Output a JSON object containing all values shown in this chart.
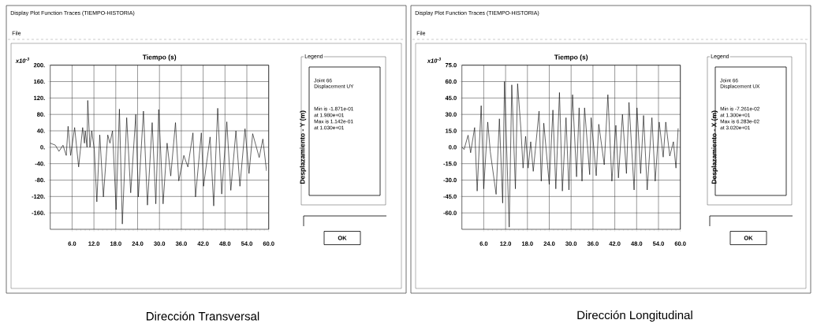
{
  "chart_data": [
    {
      "type": "line",
      "title": "Display Plot Function Traces  (TIEMPO-HISTORIA)",
      "xlabel": "Tiempo (s)",
      "ylabel": "Desplazamiento - Y (m)",
      "color": "#000000",
      "grid": true,
      "xlim": [
        0,
        60
      ],
      "ylim": [
        -200,
        200
      ],
      "xticks": [
        {
          "value": 6,
          "label": "6.0"
        },
        {
          "value": 12,
          "label": "12.0"
        },
        {
          "value": 18,
          "label": "18.0"
        },
        {
          "value": 24,
          "label": "24.0"
        },
        {
          "value": 30,
          "label": "30.0"
        },
        {
          "value": 36,
          "label": "36.0"
        },
        {
          "value": 42,
          "label": "42.0"
        },
        {
          "value": 48,
          "label": "48.0"
        },
        {
          "value": 54,
          "label": "54.0"
        },
        {
          "value": 60,
          "label": "60.0"
        }
      ],
      "yticks": [
        {
          "value": 200,
          "label": "200."
        },
        {
          "value": 160,
          "label": "160."
        },
        {
          "value": 120,
          "label": "120."
        },
        {
          "value": 80,
          "label": "80."
        },
        {
          "value": 40,
          "label": "40."
        },
        {
          "value": 0,
          "label": "0."
        },
        {
          "value": -40,
          "label": "-40."
        },
        {
          "value": -80,
          "label": "-80."
        },
        {
          "value": -120,
          "label": "-120."
        },
        {
          "value": -160,
          "label": "-160."
        }
      ],
      "x": [
        0,
        1.4,
        2.4,
        3.5,
        4.4,
        4.9,
        5.6,
        6.7,
        7.8,
        8.9,
        9.4,
        9.6,
        10.1,
        10.3,
        10.9,
        11.4,
        12.1,
        12.8,
        13.6,
        14.6,
        15.8,
        16.4,
        17.1,
        18.1,
        19.0,
        19.8,
        21.0,
        22.1,
        23.5,
        24.2,
        25.6,
        26.7,
        28.0,
        29.0,
        29.8,
        31.0,
        32.1,
        33.1,
        34.4,
        35.3,
        36.7,
        37.8,
        39.2,
        39.9,
        41.5,
        42.1,
        43.9,
        44.9,
        46.0,
        47.1,
        48.5,
        49.6,
        51.0,
        52.1,
        53.5,
        54.6,
        55.6,
        57.4,
        58.4,
        59.4
      ],
      "values": [
        10,
        5,
        -10,
        5,
        -20,
        51,
        -20,
        48,
        -48,
        48,
        10,
        40,
        0,
        114,
        0,
        40,
        -5,
        -133,
        30,
        -121,
        30,
        10,
        40,
        -152,
        93,
        -187,
        72,
        -111,
        80,
        -121,
        88,
        -141,
        60,
        -138,
        92,
        -138,
        10,
        -70,
        60,
        -82,
        -20,
        -48,
        35,
        -121,
        35,
        -95,
        25,
        -143,
        95,
        -114,
        62,
        -105,
        40,
        -95,
        45,
        -64,
        33,
        -25,
        20,
        -57
      ],
      "annotations": [
        "x10$^{-3}$",
        "File",
        "Legend",
        "Joint 66",
        "Displacement  UY",
        "Min is -1.871e-01",
        "at 1.980e+01",
        "Max is 1.142e-01",
        "at 1.030e+01",
        "OK",
        "Dirección Transversal"
      ]
    },
    {
      "type": "line",
      "title": "Display Plot Function Traces  (TIEMPO-HISTORIA)",
      "xlabel": "Tiempo (s)",
      "ylabel": "Desplazamiento - X (m)",
      "color": "#000000",
      "grid": true,
      "xlim": [
        0,
        60
      ],
      "ylim": [
        -75,
        75
      ],
      "xticks": [
        {
          "value": 6,
          "label": "6.0"
        },
        {
          "value": 12,
          "label": "12.0"
        },
        {
          "value": 18,
          "label": "18.0"
        },
        {
          "value": 24,
          "label": "24.0"
        },
        {
          "value": 30,
          "label": "30.0"
        },
        {
          "value": 36,
          "label": "36.0"
        },
        {
          "value": 42,
          "label": "42.0"
        },
        {
          "value": 48,
          "label": "48.0"
        },
        {
          "value": 54,
          "label": "54.0"
        },
        {
          "value": 60,
          "label": "60.0"
        }
      ],
      "yticks": [
        {
          "value": 75,
          "label": "75.0"
        },
        {
          "value": 60,
          "label": "60.0"
        },
        {
          "value": 45,
          "label": "45.0"
        },
        {
          "value": 30,
          "label": "30.0"
        },
        {
          "value": 15,
          "label": "15.0"
        },
        {
          "value": 0,
          "label": "0.0"
        },
        {
          "value": -15,
          "label": "-15.0"
        },
        {
          "value": -30,
          "label": "-30.0"
        },
        {
          "value": -45,
          "label": "-45.0"
        },
        {
          "value": -60,
          "label": "-60.0"
        }
      ],
      "x": [
        0,
        0.6,
        1.7,
        2.4,
        3.5,
        4.2,
        5.3,
        6.0,
        7.1,
        7.8,
        9.4,
        10.3,
        11.2,
        11.7,
        13.0,
        13.7,
        14.7,
        15.3,
        16.2,
        16.8,
        17.5,
        18.2,
        18.9,
        19.6,
        21.2,
        21.8,
        22.5,
        24.0,
        25.0,
        25.8,
        26.8,
        27.6,
        28.6,
        29.4,
        30.4,
        31.5,
        32.2,
        33.0,
        33.7,
        35.1,
        35.5,
        36.9,
        37.6,
        39.1,
        40.1,
        41.2,
        42.3,
        43.0,
        44.1,
        45.2,
        45.9,
        47.3,
        48.1,
        49.1,
        49.9,
        50.9,
        52.2,
        53.1,
        54.2,
        55.3,
        56.0,
        57.1,
        58.1,
        58.8,
        59.4
      ],
      "values": [
        0,
        -2,
        11,
        -5,
        18,
        -40,
        38,
        -38,
        23,
        -4,
        -43,
        26,
        -51,
        60,
        -73,
        57,
        -38,
        58,
        17,
        -19,
        10,
        -19,
        5,
        -22,
        33,
        -31,
        22,
        -34,
        34,
        -38,
        50,
        -40,
        27,
        -39,
        48,
        -27,
        36,
        -31,
        36,
        -25,
        27,
        -26,
        21,
        -16,
        48,
        -31,
        20,
        -28,
        30,
        -24,
        41,
        -39,
        36,
        -24,
        29,
        -39,
        27,
        -31,
        23,
        -9,
        23,
        -8,
        5,
        -19,
        17
      ],
      "annotations": [
        "x10$^{-3}$",
        "File",
        "Legend",
        "Joint 66",
        "Displacement  UX",
        "Min is -7.261e-02",
        "at 1.300e+01",
        "Max is 6.283e-02",
        "at 3.020e+01",
        "OK",
        "Dirección Longitudinal"
      ]
    }
  ]
}
